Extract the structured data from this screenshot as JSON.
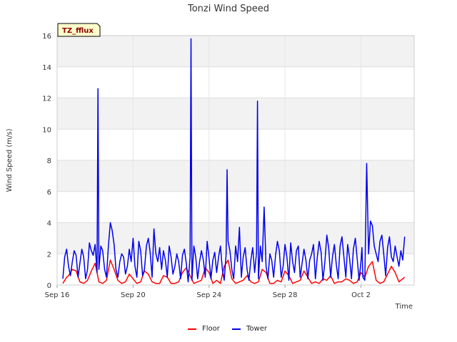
{
  "chart_data": {
    "type": "line",
    "title": "Tonzi Wind Speed",
    "xlabel": "Time",
    "ylabel": "Wind Speed (m/s)",
    "badge": "TZ_fflux",
    "xlim": [
      0,
      18.8
    ],
    "ylim": [
      0,
      16
    ],
    "x_ticks": [
      {
        "value": 0,
        "label": "Sep 16"
      },
      {
        "value": 4,
        "label": "Sep 20"
      },
      {
        "value": 8,
        "label": "Sep 24"
      },
      {
        "value": 12,
        "label": "Sep 28"
      },
      {
        "value": 16,
        "label": "Oct 2"
      }
    ],
    "y_ticks": [
      0,
      2,
      4,
      6,
      8,
      10,
      12,
      14,
      16
    ],
    "grid": true,
    "band_fill": "#f2f2f2",
    "legend_position": "bottom",
    "series": [
      {
        "name": "Floor",
        "color": "#ff0000",
        "x": [
          0.3,
          0.5,
          0.6,
          0.8,
          1.0,
          1.2,
          1.4,
          1.6,
          1.8,
          2.0,
          2.2,
          2.4,
          2.6,
          2.8,
          3.0,
          3.2,
          3.4,
          3.6,
          3.8,
          4.0,
          4.2,
          4.4,
          4.6,
          4.8,
          5.0,
          5.2,
          5.4,
          5.6,
          5.8,
          6.0,
          6.2,
          6.4,
          6.6,
          6.8,
          7.0,
          7.2,
          7.4,
          7.6,
          7.8,
          8.0,
          8.2,
          8.4,
          8.6,
          8.8,
          9.0,
          9.2,
          9.4,
          9.6,
          9.8,
          10.0,
          10.2,
          10.4,
          10.6,
          10.8,
          11.0,
          11.2,
          11.4,
          11.6,
          11.8,
          12.0,
          12.2,
          12.4,
          12.6,
          12.8,
          13.0,
          13.2,
          13.4,
          13.6,
          13.8,
          14.0,
          14.2,
          14.4,
          14.6,
          14.8,
          15.0,
          15.2,
          15.4,
          15.6,
          15.8,
          16.0,
          16.2,
          16.4,
          16.6,
          16.8,
          17.0,
          17.2,
          17.4,
          17.6,
          17.8,
          18.0,
          18.3
        ],
        "values": [
          0.1,
          0.5,
          0.6,
          1.0,
          0.9,
          0.2,
          0.1,
          0.3,
          0.9,
          1.4,
          0.2,
          0.1,
          0.3,
          1.6,
          1.0,
          0.3,
          0.1,
          0.2,
          0.7,
          0.4,
          0.1,
          0.2,
          0.9,
          0.7,
          0.2,
          0.1,
          0.1,
          0.6,
          0.5,
          0.1,
          0.1,
          0.2,
          0.8,
          1.1,
          0.6,
          0.1,
          0.2,
          0.3,
          1.1,
          0.8,
          0.1,
          0.3,
          0.1,
          1.2,
          1.6,
          0.4,
          0.1,
          0.2,
          0.3,
          0.6,
          0.2,
          0.1,
          0.2,
          1.0,
          0.8,
          0.1,
          0.1,
          0.3,
          0.2,
          0.9,
          0.6,
          0.1,
          0.2,
          0.3,
          0.9,
          0.5,
          0.1,
          0.2,
          0.1,
          0.4,
          0.3,
          0.6,
          0.1,
          0.2,
          0.2,
          0.4,
          0.3,
          0.1,
          0.2,
          0.8,
          0.5,
          1.2,
          1.5,
          0.3,
          0.1,
          0.2,
          0.7,
          1.2,
          0.8,
          0.2,
          0.5
        ]
      },
      {
        "name": "Tower",
        "color": "#0000ee",
        "x": [
          0.3,
          0.4,
          0.5,
          0.6,
          0.7,
          0.8,
          0.9,
          1.0,
          1.1,
          1.2,
          1.3,
          1.4,
          1.5,
          1.6,
          1.7,
          1.8,
          1.9,
          2.0,
          2.1,
          2.15,
          2.2,
          2.3,
          2.4,
          2.5,
          2.6,
          2.7,
          2.8,
          2.9,
          3.0,
          3.1,
          3.2,
          3.3,
          3.4,
          3.5,
          3.6,
          3.7,
          3.8,
          3.9,
          4.0,
          4.1,
          4.2,
          4.3,
          4.4,
          4.5,
          4.6,
          4.7,
          4.8,
          4.9,
          5.0,
          5.1,
          5.2,
          5.3,
          5.4,
          5.5,
          5.6,
          5.7,
          5.8,
          5.9,
          6.0,
          6.1,
          6.2,
          6.3,
          6.4,
          6.5,
          6.6,
          6.7,
          6.8,
          6.9,
          7.0,
          7.05,
          7.1,
          7.2,
          7.3,
          7.4,
          7.5,
          7.6,
          7.7,
          7.8,
          7.9,
          8.0,
          8.1,
          8.2,
          8.3,
          8.4,
          8.5,
          8.6,
          8.7,
          8.8,
          8.9,
          8.95,
          9.0,
          9.1,
          9.2,
          9.3,
          9.4,
          9.5,
          9.6,
          9.7,
          9.8,
          9.9,
          10.0,
          10.1,
          10.2,
          10.3,
          10.4,
          10.5,
          10.55,
          10.6,
          10.7,
          10.8,
          10.9,
          11.0,
          11.1,
          11.2,
          11.3,
          11.4,
          11.5,
          11.6,
          11.7,
          11.8,
          11.9,
          12.0,
          12.1,
          12.2,
          12.3,
          12.4,
          12.5,
          12.6,
          12.7,
          12.8,
          12.9,
          13.0,
          13.1,
          13.2,
          13.3,
          13.4,
          13.5,
          13.6,
          13.7,
          13.8,
          13.9,
          14.0,
          14.1,
          14.2,
          14.3,
          14.4,
          14.5,
          14.6,
          14.7,
          14.8,
          14.9,
          15.0,
          15.1,
          15.2,
          15.3,
          15.4,
          15.5,
          15.6,
          15.7,
          15.8,
          15.9,
          16.0,
          16.05,
          16.1,
          16.2,
          16.3,
          16.4,
          16.5,
          16.6,
          16.7,
          16.8,
          16.9,
          17.0,
          17.1,
          17.2,
          17.3,
          17.4,
          17.5,
          17.6,
          17.7,
          17.8,
          17.9,
          18.0,
          18.1,
          18.2,
          18.3
        ],
        "values": [
          0.4,
          1.8,
          2.3,
          1.2,
          0.6,
          1.5,
          2.2,
          1.9,
          0.5,
          1.4,
          2.3,
          1.8,
          0.4,
          1.0,
          2.7,
          2.2,
          1.9,
          2.6,
          0.8,
          12.6,
          1.0,
          2.5,
          2.2,
          1.0,
          0.5,
          2.5,
          4.0,
          3.5,
          2.6,
          1.0,
          0.5,
          1.5,
          2.0,
          1.8,
          0.7,
          1.2,
          2.3,
          1.5,
          3.0,
          1.2,
          0.5,
          2.8,
          2.2,
          0.6,
          1.0,
          2.5,
          3.0,
          2.1,
          0.5,
          3.6,
          2.0,
          1.5,
          2.4,
          1.0,
          2.2,
          1.6,
          0.5,
          2.5,
          1.8,
          0.7,
          1.2,
          2.0,
          1.5,
          0.4,
          1.9,
          2.3,
          1.4,
          0.2,
          1.8,
          15.8,
          0.3,
          2.5,
          1.8,
          0.4,
          1.5,
          2.2,
          1.6,
          0.5,
          2.8,
          1.7,
          0.4,
          1.6,
          2.1,
          0.8,
          1.8,
          2.5,
          1.0,
          0.3,
          2.0,
          7.4,
          2.8,
          2.2,
          1.0,
          0.4,
          2.5,
          1.5,
          3.7,
          0.5,
          1.8,
          2.4,
          1.0,
          0.3,
          1.6,
          2.4,
          0.8,
          2.1,
          11.8,
          0.4,
          2.5,
          1.5,
          5.0,
          1.2,
          0.4,
          2.0,
          1.6,
          0.5,
          1.9,
          2.8,
          2.2,
          0.5,
          1.2,
          2.6,
          1.8,
          0.3,
          2.7,
          1.5,
          0.8,
          2.2,
          2.5,
          0.5,
          1.4,
          2.3,
          1.6,
          0.4,
          1.6,
          2.0,
          2.6,
          0.4,
          1.8,
          2.8,
          2.1,
          0.3,
          1.5,
          3.2,
          2.4,
          0.5,
          1.8,
          2.6,
          1.3,
          0.4,
          2.5,
          3.1,
          1.8,
          0.5,
          2.6,
          1.7,
          0.4,
          2.3,
          3.0,
          1.7,
          0.3,
          1.5,
          2.4,
          0.5,
          0.3,
          7.8,
          2.0,
          4.1,
          3.8,
          2.5,
          2.0,
          1.5,
          2.8,
          3.2,
          2.0,
          0.6,
          2.4,
          3.1,
          1.8,
          1.5,
          2.5,
          1.8,
          1.2,
          2.2,
          1.6,
          3.1
        ]
      }
    ]
  }
}
